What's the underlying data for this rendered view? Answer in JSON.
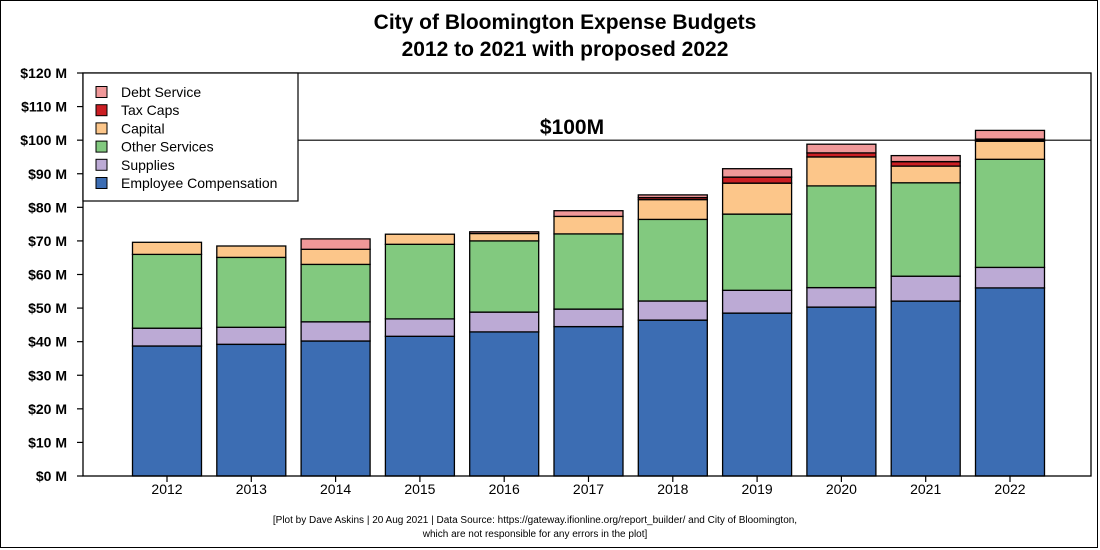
{
  "chart_data": {
    "type": "bar",
    "stacked": true,
    "title": "City of Bloomington Expense Budgets",
    "subtitle": "2012 to 2021 with proposed 2022",
    "xlabel": "",
    "ylabel": "",
    "ylim": [
      0,
      120
    ],
    "yticks": [
      0,
      10,
      20,
      30,
      40,
      50,
      60,
      70,
      80,
      90,
      100,
      110,
      120
    ],
    "ytick_labels": [
      "$0 M",
      "$10 M",
      "$20 M",
      "$30 M",
      "$40 M",
      "$50 M",
      "$60 M",
      "$70 M",
      "$80 M",
      "$90 M",
      "$100 M",
      "$110 M",
      "$120 M"
    ],
    "categories": [
      "2012",
      "2013",
      "2014",
      "2015",
      "2016",
      "2017",
      "2018",
      "2019",
      "2020",
      "2021",
      "2022"
    ],
    "legend_position": "top-left",
    "grid": false,
    "series": [
      {
        "name": "Employee Compensation",
        "color": "#3c6db3",
        "values": [
          38.7,
          39.2,
          40.2,
          41.6,
          42.9,
          44.5,
          46.4,
          48.5,
          50.3,
          52.1,
          56.0
        ]
      },
      {
        "name": "Supplies",
        "color": "#bcaad5",
        "values": [
          5.3,
          5.1,
          5.7,
          5.2,
          5.9,
          5.2,
          5.7,
          6.8,
          5.8,
          7.4,
          6.1
        ]
      },
      {
        "name": "Other Services",
        "color": "#82c97f",
        "values": [
          22.0,
          20.8,
          17.1,
          22.2,
          21.2,
          22.4,
          24.3,
          22.7,
          30.3,
          27.8,
          32.2
        ]
      },
      {
        "name": "Capital",
        "color": "#fcc68a",
        "values": [
          3.6,
          3.4,
          4.5,
          3.0,
          2.2,
          5.2,
          5.9,
          9.2,
          8.6,
          5.0,
          5.4
        ]
      },
      {
        "name": "Tax Caps",
        "color": "#cb1e23",
        "values": [
          0,
          0,
          0,
          0,
          0,
          0,
          0.6,
          1.8,
          1.2,
          1.3,
          0.6
        ]
      },
      {
        "name": "Debt Service",
        "color": "#f09899",
        "values": [
          0,
          0,
          3.1,
          0,
          0.5,
          1.7,
          0.8,
          2.5,
          2.6,
          1.8,
          2.6
        ]
      }
    ],
    "reference_line": {
      "value": 100,
      "label": "$100M"
    }
  },
  "caption": {
    "line1": "[Plot by Dave Askins | 20 Aug 2021 | Data Source: https://gateway.ifionline.org/report_builder/ and City of Bloomington,",
    "line2": "which are not responsible for any errors in the plot]"
  }
}
